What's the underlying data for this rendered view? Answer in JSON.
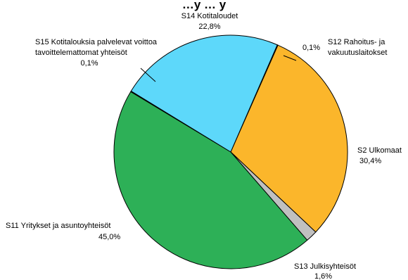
{
  "chart_data": {
    "type": "pie",
    "title": "…y … y",
    "slices": [
      {
        "name": "S12 Rahoitus- ja vakuutuslaitokset",
        "value": 0.1,
        "value_label": "0,1%",
        "color": "#ffffff"
      },
      {
        "name": "S2 Ulkomaat",
        "value": 30.4,
        "value_label": "30,4%",
        "color": "#fbb62b"
      },
      {
        "name": "S13 Julkisyhteisöt",
        "value": 1.6,
        "value_label": "1,6%",
        "color": "#c0c0c0"
      },
      {
        "name": "S11 Yritykset ja asuntoyhteisöt",
        "value": 45.0,
        "value_label": "45,0%",
        "color": "#2db057"
      },
      {
        "name": "S15 Kotitalouksia palvelevat voittoa tavoittelemattomat yhteisöt",
        "value": 0.1,
        "value_label": "0,1%",
        "color": "#ffffff"
      },
      {
        "name": "S14 Kotitaloudet",
        "value": 22.8,
        "value_label": "22,8%",
        "color": "#5dd8fa"
      }
    ]
  },
  "labels": {
    "s14_name": "S14 Kotitaloudet",
    "s14_value": "22,8%",
    "s15_line1": "S15 Kotitalouksia palvelevat voittoa",
    "s15_line2": "tavoittelemattomat yhteisöt",
    "s15_value": "0,1%",
    "s12_value": "0,1%",
    "s12_line1": "S12 Rahoitus- ja",
    "s12_line2": "vakuutuslaitokset",
    "s2_name": "S2 Ulkomaat",
    "s2_value": "30,4%",
    "s11_name": "S11 Yritykset ja asuntoyhteisöt",
    "s11_value": "45,0%",
    "s13_name": "S13 Julkisyhteisöt",
    "s13_value": "1,6%"
  }
}
